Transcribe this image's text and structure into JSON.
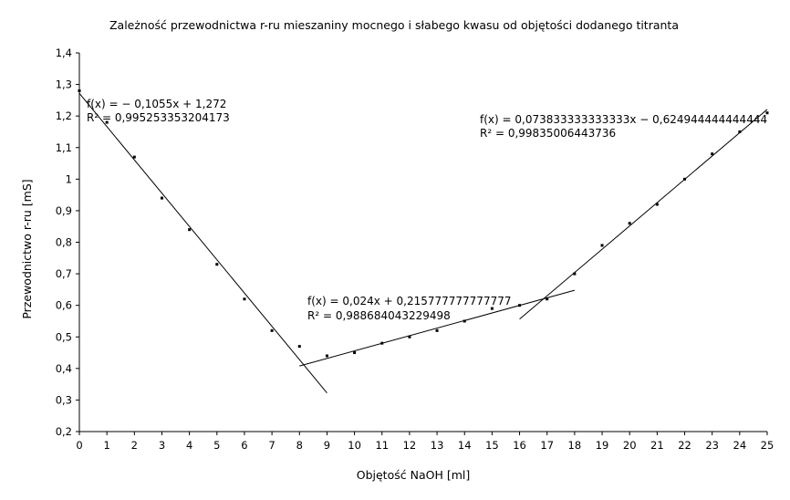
{
  "chart_data": {
    "type": "scatter",
    "title": "Zależność przewodnictwa r-ru mieszaniny mocnego i słabego kwasu od objętości dodanego titranta",
    "xlabel": "Objętość NaOH [ml]",
    "ylabel": "Przewodnictwo r-ru [mS]",
    "xlim": [
      0,
      25
    ],
    "ylim": [
      0.2,
      1.4
    ],
    "x_ticks": [
      "0",
      "1",
      "2",
      "3",
      "4",
      "5",
      "6",
      "7",
      "8",
      "9",
      "10",
      "11",
      "12",
      "13",
      "14",
      "15",
      "16",
      "17",
      "18",
      "19",
      "20",
      "21",
      "22",
      "23",
      "24",
      "25"
    ],
    "y_ticks": [
      "0,2",
      "0,3",
      "0,4",
      "0,5",
      "0,6",
      "0,7",
      "0,8",
      "0,9",
      "1",
      "1,1",
      "1,2",
      "1,3",
      "1,4"
    ],
    "grid": false,
    "points": [
      {
        "x": 0,
        "y": 1.28
      },
      {
        "x": 1,
        "y": 1.18
      },
      {
        "x": 2,
        "y": 1.07
      },
      {
        "x": 3,
        "y": 0.94
      },
      {
        "x": 4,
        "y": 0.84
      },
      {
        "x": 5,
        "y": 0.73
      },
      {
        "x": 6,
        "y": 0.62
      },
      {
        "x": 7,
        "y": 0.52
      },
      {
        "x": 8,
        "y": 0.47
      },
      {
        "x": 9,
        "y": 0.44
      },
      {
        "x": 10,
        "y": 0.45
      },
      {
        "x": 11,
        "y": 0.48
      },
      {
        "x": 12,
        "y": 0.5
      },
      {
        "x": 13,
        "y": 0.52
      },
      {
        "x": 14,
        "y": 0.55
      },
      {
        "x": 15,
        "y": 0.59
      },
      {
        "x": 16,
        "y": 0.6
      },
      {
        "x": 17,
        "y": 0.62
      },
      {
        "x": 18,
        "y": 0.7
      },
      {
        "x": 19,
        "y": 0.79
      },
      {
        "x": 20,
        "y": 0.86
      },
      {
        "x": 21,
        "y": 0.92
      },
      {
        "x": 22,
        "y": 1.0
      },
      {
        "x": 23,
        "y": 1.08
      },
      {
        "x": 24,
        "y": 1.15
      },
      {
        "x": 25,
        "y": 1.21
      }
    ],
    "trendlines": [
      {
        "slope": -0.1055,
        "intercept": 1.272,
        "x_range": [
          0,
          9
        ],
        "equation": "f(x) = − 0,1055x + 1,272",
        "r2": "R² = 0,995253353204173"
      },
      {
        "slope": 0.024,
        "intercept": 0.215777777777777,
        "x_range": [
          8,
          18
        ],
        "equation": "f(x) = 0,024x + 0,215777777777777",
        "r2": "R² = 0,988684043229498"
      },
      {
        "slope": 0.073833333333333,
        "intercept": -0.624944444444444,
        "x_range": [
          16,
          25
        ],
        "equation": "f(x) = 0,073833333333333x − 0,624944444444444",
        "r2": "R² = 0,99835006443736"
      }
    ]
  }
}
